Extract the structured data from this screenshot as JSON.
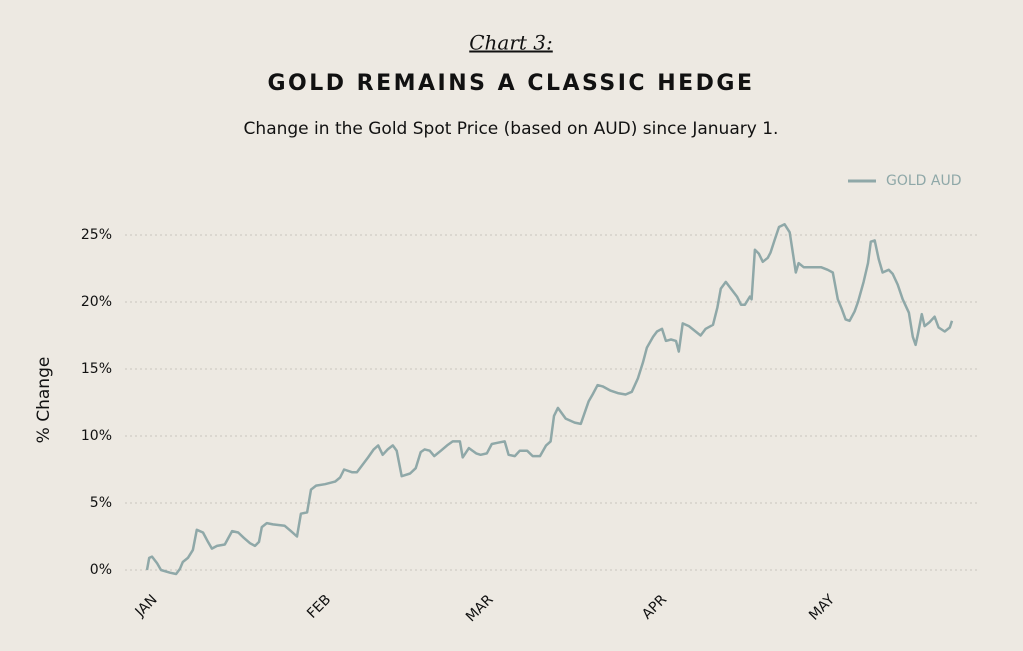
{
  "chart_data": {
    "type": "line",
    "kicker": "Chart 3:",
    "title": "GOLD REMAINS A CLASSIC HEDGE",
    "subtitle": "Change in the Gold Spot Price (based on AUD) since January 1.",
    "y_label": "% Change",
    "legend": "top-right",
    "grid": true,
    "xlim": [
      0,
      143.8
    ],
    "ylim": [
      -1,
      26
    ],
    "xticks": [
      {
        "value": 0,
        "label": "JAN"
      },
      {
        "value": 31,
        "label": "FEB"
      },
      {
        "value": 60,
        "label": "MAR"
      },
      {
        "value": 91,
        "label": "APR"
      },
      {
        "value": 121,
        "label": "MAY"
      }
    ],
    "yticks": [
      {
        "value": 0,
        "label": "0%"
      },
      {
        "value": 5,
        "label": "5%"
      },
      {
        "value": 10,
        "label": "10%"
      },
      {
        "value": 15,
        "label": "15%"
      },
      {
        "value": 20,
        "label": "20%"
      },
      {
        "value": 25,
        "label": "25%"
      }
    ],
    "x": [
      0,
      0.4,
      0.9,
      1.8,
      2.5,
      4.1,
      5.2,
      5.9,
      6.4,
      7.3,
      8.2,
      8.9,
      10.0,
      10.9,
      11.6,
      12.5,
      13.9,
      15.2,
      16.3,
      17.3,
      18.4,
      19.3,
      20.0,
      20.5,
      21.4,
      22.5,
      24.6,
      25.7,
      26.8,
      27.5,
      28.6,
      29.3,
      30.2,
      31.8,
      33.6,
      34.5,
      35.2,
      36.6,
      37.5,
      38.4,
      39.5,
      40.5,
      41.3,
      42.1,
      43.0,
      43.9,
      44.6,
      45.5,
      47.0,
      48.0,
      48.9,
      49.6,
      50.5,
      51.3,
      52.5,
      53.6,
      54.6,
      55.9,
      56.4,
      57.5,
      58.8,
      59.6,
      60.7,
      61.6,
      62.7,
      63.9,
      64.6,
      65.7,
      66.6,
      67.9,
      68.9,
      70.2,
      71.3,
      72.1,
      72.7,
      73.4,
      74.1,
      74.8,
      76.4,
      77.5,
      78.4,
      78.9,
      79.6,
      80.5,
      81.4,
      82.7,
      84.1,
      85.5,
      86.6,
      87.7,
      88.6,
      89.3,
      90.4,
      91.1,
      92.0,
      92.7,
      93.6,
      94.5,
      95.0,
      95.7,
      96.8,
      97.7,
      98.9,
      99.8,
      101.1,
      101.9,
      102.5,
      103.4,
      104.3,
      105.4,
      106.1,
      106.8,
      107.7,
      108.0,
      108.6,
      109.3,
      110.0,
      110.9,
      111.4,
      112.1,
      112.9,
      113.9,
      114.8,
      115.5,
      115.9,
      116.4,
      117.3,
      118.8,
      120.4,
      121.6,
      122.5,
      123.4,
      124.1,
      124.8,
      125.5,
      126.4,
      127.0,
      128.0,
      128.8,
      129.3,
      130.0,
      130.7,
      131.4,
      132.5,
      133.2,
      134.1,
      135.0,
      136.1,
      136.8,
      137.3,
      137.7,
      138.4,
      138.9,
      139.8,
      140.7,
      141.4,
      142.5,
      143.4,
      143.8
    ],
    "series": [
      {
        "name": "GOLD AUD",
        "color": "#8fa8a8",
        "values": [
          0,
          0.9,
          1.0,
          0.5,
          0,
          -0.2,
          -0.3,
          0.1,
          0.6,
          0.9,
          1.5,
          3.0,
          2.8,
          2.1,
          1.6,
          1.8,
          1.9,
          2.9,
          2.8,
          2.4,
          2.0,
          1.8,
          2.1,
          3.2,
          3.5,
          3.4,
          3.3,
          2.9,
          2.5,
          4.2,
          4.3,
          6.0,
          6.3,
          6.4,
          6.6,
          6.9,
          7.5,
          7.3,
          7.3,
          7.8,
          8.4,
          9.0,
          9.3,
          8.6,
          9.0,
          9.3,
          8.9,
          7.0,
          7.2,
          7.6,
          8.8,
          9.0,
          8.9,
          8.5,
          8.9,
          9.3,
          9.6,
          9.6,
          8.4,
          9.1,
          8.7,
          8.6,
          8.7,
          9.4,
          9.5,
          9.6,
          8.6,
          8.5,
          8.9,
          8.9,
          8.5,
          8.5,
          9.3,
          9.6,
          11.5,
          12.1,
          11.7,
          11.3,
          11.0,
          10.9,
          12.0,
          12.6,
          13.1,
          13.8,
          13.7,
          13.4,
          13.2,
          13.1,
          13.3,
          14.3,
          15.5,
          16.6,
          17.4,
          17.8,
          18.0,
          17.1,
          17.2,
          17.1,
          16.3,
          18.4,
          18.2,
          17.9,
          17.5,
          18.0,
          18.3,
          19.6,
          21.0,
          21.5,
          21.0,
          20.4,
          19.8,
          19.8,
          20.4,
          20.2,
          23.9,
          23.6,
          23.0,
          23.3,
          23.7,
          24.6,
          25.6,
          25.8,
          25.2,
          23.3,
          22.2,
          22.9,
          22.6,
          22.6,
          22.6,
          22.4,
          22.2,
          20.2,
          19.5,
          18.7,
          18.6,
          19.3,
          20.0,
          21.5,
          22.9,
          24.5,
          24.6,
          23.2,
          22.2,
          22.4,
          22.1,
          21.3,
          20.2,
          19.2,
          17.4,
          16.8,
          17.6,
          19.1,
          18.2,
          18.5,
          18.9,
          18.1,
          17.8,
          18.1,
          18.6
        ]
      }
    ]
  }
}
